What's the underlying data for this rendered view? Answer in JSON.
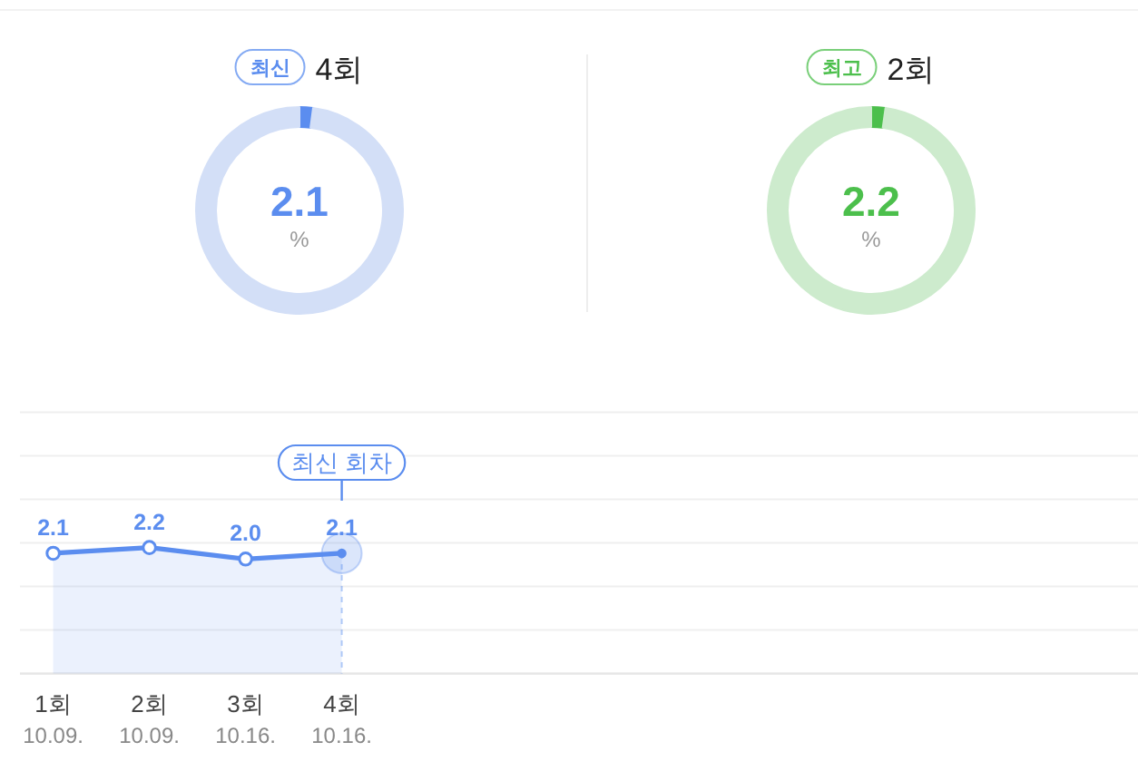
{
  "chart_data": [
    {
      "type": "donut",
      "title": "4회",
      "annotations": [
        "최신",
        "%"
      ],
      "categories": [
        null,
        null
      ],
      "values": [
        2.1,
        97.9
      ],
      "colors": [
        "#5b8def",
        "#d3dff7"
      ],
      "value_labels": [
        "2.1",
        null
      ]
    },
    {
      "type": "donut",
      "title": "2회",
      "annotations": [
        "최고",
        "%"
      ],
      "categories": [
        null,
        null
      ],
      "values": [
        2.2,
        97.8
      ],
      "colors": [
        "#4cbf4c",
        "#cdebcd"
      ],
      "value_labels": [
        "2.2",
        null
      ]
    },
    {
      "type": "area",
      "categories": [
        "1회\n10.09.",
        "2회\n10.09.",
        "3회\n10.16.",
        "4회\n10.16."
      ],
      "series": [
        {
          "color": "#5b8def",
          "values": [
            2.1,
            2.2,
            2.0,
            2.1
          ],
          "value_labels": [
            "2.1",
            "2.2",
            "2.0",
            "2.1"
          ]
        }
      ],
      "marker": "circle",
      "ylim": [
        0,
        4.56
      ],
      "yticks": [
        {
          "value": 0,
          "label": null
        },
        {
          "value": 0.76,
          "label": null
        },
        {
          "value": 1.52,
          "label": null
        },
        {
          "value": 2.28,
          "label": null
        },
        {
          "value": 3.04,
          "label": null
        },
        {
          "value": 3.8,
          "label": null
        },
        {
          "value": 4.56,
          "label": null
        }
      ],
      "grid": "y",
      "tick_labels": "x",
      "ref_lines": [
        {
          "axis": "x",
          "value": "4회\n10.16.",
          "label": "최신 회차",
          "line_style": "dashed"
        }
      ]
    }
  ]
}
